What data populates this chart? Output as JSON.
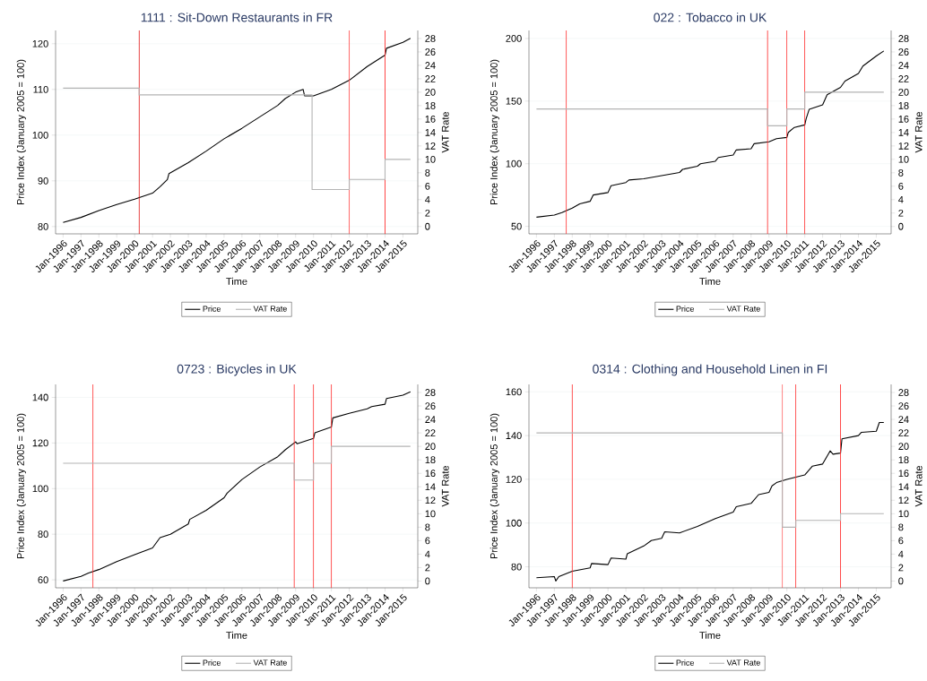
{
  "chart_data": [
    {
      "type": "line",
      "title": "1111 : Sit-Down Restaurants in FR",
      "xlabel": "Time",
      "ylabel": "Price Index (January 2005 = 100)",
      "y2label": "VAT Rate",
      "xlim": [
        "1995-08",
        "2015-11"
      ],
      "ylim": [
        78.4,
        122.9
      ],
      "yticks": [
        80,
        90,
        100,
        110,
        120
      ],
      "y2lim": [
        -1.1,
        29.2
      ],
      "y2ticks": [
        0,
        2,
        4,
        6,
        8,
        10,
        12,
        14,
        16,
        18,
        20,
        22,
        24,
        26,
        28
      ],
      "grid": "y",
      "legend": "bottom",
      "xticks": [
        {
          "value": "1996-01",
          "label": "Jan-1996"
        },
        {
          "value": "1997-01",
          "label": "Jan-1997"
        },
        {
          "value": "1998-01",
          "label": "Jan-1998"
        },
        {
          "value": "1999-01",
          "label": "Jan-1999"
        },
        {
          "value": "2000-01",
          "label": "Jan-2000"
        },
        {
          "value": "2001-01",
          "label": "Jan-2001"
        },
        {
          "value": "2002-01",
          "label": "Jan-2002"
        },
        {
          "value": "2003-01",
          "label": "Jan-2003"
        },
        {
          "value": "2004-01",
          "label": "Jan-2004"
        },
        {
          "value": "2005-01",
          "label": "Jan-2005"
        },
        {
          "value": "2006-01",
          "label": "Jan-2006"
        },
        {
          "value": "2007-01",
          "label": "Jan-2007"
        },
        {
          "value": "2008-01",
          "label": "Jan-2008"
        },
        {
          "value": "2009-01",
          "label": "Jan-2009"
        },
        {
          "value": "2010-01",
          "label": "Jan-2010"
        },
        {
          "value": "2011-01",
          "label": "Jan-2011"
        },
        {
          "value": "2012-01",
          "label": "Jan-2012"
        },
        {
          "value": "2013-01",
          "label": "Jan-2013"
        },
        {
          "value": "2014-01",
          "label": "Jan-2014"
        },
        {
          "value": "2015-01",
          "label": "Jan-2015"
        }
      ],
      "series": [
        {
          "name": "Price",
          "color": "#000000",
          "x": [
            "1996-01",
            "1997-01",
            "1998-01",
            "1999-01",
            "2000-01",
            "2001-01",
            "2001-06",
            "2001-11",
            "2001-12",
            "2003-01",
            "2004-01",
            "2005-01",
            "2006-01",
            "2007-01",
            "2008-01",
            "2008-06",
            "2009-01",
            "2009-06",
            "2009-07",
            "2010-01",
            "2011-01",
            "2012-01",
            "2013-01",
            "2014-01",
            "2014-02",
            "2015-01",
            "2015-06"
          ],
          "values": [
            80.9,
            82.0,
            83.5,
            84.8,
            86.0,
            87.3,
            88.7,
            90.3,
            91.6,
            94.0,
            96.5,
            99.2,
            101.5,
            104.0,
            106.5,
            108.0,
            109.4,
            110.0,
            108.6,
            108.6,
            110.0,
            112.0,
            115.0,
            117.5,
            119.0,
            120.3,
            121.2
          ]
        },
        {
          "name": "VAT Rate",
          "type": "step",
          "axis": "y2",
          "color": "#b4b4b4",
          "x": [
            "1996-01",
            "2000-04",
            "2009-12",
            "2012-01",
            "2014-01",
            "2015-06"
          ],
          "values": [
            20.6,
            19.6,
            5.5,
            7,
            10,
            10
          ]
        }
      ],
      "ref_lines": [
        {
          "axis": "x",
          "value": "2000-04",
          "color": "#e00000"
        },
        {
          "axis": "x",
          "value": "2012-01",
          "color": "#ff5050"
        },
        {
          "axis": "x",
          "value": "2014-01",
          "color": "#ff3030"
        }
      ]
    },
    {
      "type": "line",
      "title": "022 : Tobacco in UK",
      "xlabel": "Time",
      "ylabel": "Price Index (January 2005 = 100)",
      "y2label": "VAT Rate",
      "xlim": [
        "1995-08",
        "2015-11"
      ],
      "ylim": [
        44.0,
        206.4
      ],
      "yticks": [
        50,
        100,
        150,
        200
      ],
      "y2lim": [
        -1.1,
        29.2
      ],
      "y2ticks": [
        0,
        2,
        4,
        6,
        8,
        10,
        12,
        14,
        16,
        18,
        20,
        22,
        24,
        26,
        28
      ],
      "grid": "y",
      "legend": "bottom",
      "xticks": [
        {
          "value": "1996-01",
          "label": "Jan-1996"
        },
        {
          "value": "1997-01",
          "label": "Jan-1997"
        },
        {
          "value": "1998-01",
          "label": "Jan-1998"
        },
        {
          "value": "1999-01",
          "label": "Jan-1999"
        },
        {
          "value": "2000-01",
          "label": "Jan-2000"
        },
        {
          "value": "2001-01",
          "label": "Jan-2001"
        },
        {
          "value": "2002-01",
          "label": "Jan-2002"
        },
        {
          "value": "2003-01",
          "label": "Jan-2003"
        },
        {
          "value": "2004-01",
          "label": "Jan-2004"
        },
        {
          "value": "2005-01",
          "label": "Jan-2005"
        },
        {
          "value": "2006-01",
          "label": "Jan-2006"
        },
        {
          "value": "2007-01",
          "label": "Jan-2007"
        },
        {
          "value": "2008-01",
          "label": "Jan-2008"
        },
        {
          "value": "2009-01",
          "label": "Jan-2009"
        },
        {
          "value": "2010-01",
          "label": "Jan-2010"
        },
        {
          "value": "2011-01",
          "label": "Jan-2011"
        },
        {
          "value": "2012-01",
          "label": "Jan-2012"
        },
        {
          "value": "2013-01",
          "label": "Jan-2013"
        },
        {
          "value": "2014-01",
          "label": "Jan-2014"
        },
        {
          "value": "2015-01",
          "label": "Jan-2015"
        }
      ],
      "series": [
        {
          "name": "Price",
          "color": "#000000",
          "x": [
            "1996-01",
            "1997-01",
            "1997-06",
            "1998-01",
            "1998-06",
            "1999-01",
            "1999-03",
            "2000-01",
            "2000-03",
            "2001-01",
            "2001-03",
            "2002-01",
            "2003-01",
            "2004-01",
            "2004-03",
            "2005-01",
            "2005-03",
            "2006-01",
            "2006-03",
            "2007-01",
            "2007-03",
            "2008-01",
            "2008-03",
            "2009-01",
            "2009-06",
            "2010-01",
            "2010-02",
            "2010-06",
            "2011-01",
            "2011-02",
            "2011-04",
            "2012-01",
            "2012-04",
            "2013-01",
            "2013-04",
            "2014-01",
            "2014-04",
            "2015-01",
            "2015-06"
          ],
          "values": [
            57.3,
            59,
            61,
            64.5,
            68,
            70,
            75,
            77,
            82.5,
            85,
            87,
            88,
            90.5,
            93,
            95.5,
            98,
            100,
            102,
            105,
            107,
            111,
            112,
            116,
            117.5,
            120,
            121,
            125,
            129,
            131,
            136,
            143.5,
            147,
            155,
            161,
            166,
            172,
            178,
            186,
            190
          ]
        },
        {
          "name": "VAT Rate",
          "type": "step",
          "axis": "y2",
          "color": "#b4b4b4",
          "x": [
            "1996-01",
            "2008-12",
            "2010-01",
            "2011-01",
            "2015-06"
          ],
          "values": [
            17.5,
            15,
            17.5,
            20,
            20
          ]
        }
      ],
      "ref_lines": [
        {
          "axis": "x",
          "value": "1997-09",
          "color": "#ff3030"
        },
        {
          "axis": "x",
          "value": "2008-12",
          "color": "#ff3030"
        },
        {
          "axis": "x",
          "value": "2010-01",
          "color": "#ff3030"
        },
        {
          "axis": "x",
          "value": "2011-01",
          "color": "#ff3030"
        }
      ]
    },
    {
      "type": "line",
      "title": "0723 : Bicycles in UK",
      "xlabel": "Time",
      "ylabel": "Price Index (January 2005 = 100)",
      "y2label": "VAT Rate",
      "xlim": [
        "1995-08",
        "2015-11"
      ],
      "ylim": [
        56.5,
        145.7
      ],
      "yticks": [
        60,
        80,
        100,
        120,
        140
      ],
      "y2lim": [
        -1.0,
        29.2
      ],
      "y2ticks": [
        0,
        2,
        4,
        6,
        8,
        10,
        12,
        14,
        16,
        18,
        20,
        22,
        24,
        26,
        28
      ],
      "grid": "y",
      "legend": "bottom",
      "xticks": [
        {
          "value": "1996-01",
          "label": "Jan-1996"
        },
        {
          "value": "1997-01",
          "label": "Jan-1997"
        },
        {
          "value": "1998-01",
          "label": "Jan-1998"
        },
        {
          "value": "1999-01",
          "label": "Jan-1999"
        },
        {
          "value": "2000-01",
          "label": "Jan-2000"
        },
        {
          "value": "2001-01",
          "label": "Jan-2001"
        },
        {
          "value": "2002-01",
          "label": "Jan-2002"
        },
        {
          "value": "2003-01",
          "label": "Jan-2003"
        },
        {
          "value": "2004-01",
          "label": "Jan-2004"
        },
        {
          "value": "2005-01",
          "label": "Jan-2005"
        },
        {
          "value": "2006-01",
          "label": "Jan-2006"
        },
        {
          "value": "2007-01",
          "label": "Jan-2007"
        },
        {
          "value": "2008-01",
          "label": "Jan-2008"
        },
        {
          "value": "2009-01",
          "label": "Jan-2009"
        },
        {
          "value": "2010-01",
          "label": "Jan-2010"
        },
        {
          "value": "2011-01",
          "label": "Jan-2011"
        },
        {
          "value": "2012-01",
          "label": "Jan-2012"
        },
        {
          "value": "2013-01",
          "label": "Jan-2013"
        },
        {
          "value": "2014-01",
          "label": "Jan-2014"
        },
        {
          "value": "2015-01",
          "label": "Jan-2015"
        }
      ],
      "series": [
        {
          "name": "Price",
          "color": "#000000",
          "x": [
            "1996-01",
            "1997-01",
            "1997-06",
            "1998-01",
            "1999-01",
            "2000-01",
            "2001-01",
            "2001-06",
            "2002-01",
            "2003-01",
            "2003-02",
            "2004-01",
            "2005-01",
            "2005-03",
            "2006-01",
            "2007-01",
            "2008-01",
            "2008-06",
            "2009-01",
            "2009-02",
            "2010-01",
            "2010-02",
            "2011-01",
            "2011-02",
            "2012-01",
            "2013-01",
            "2013-04",
            "2014-01",
            "2014-02",
            "2015-01",
            "2015-06"
          ],
          "values": [
            59.5,
            61.5,
            63,
            64.5,
            68,
            71,
            74,
            78.5,
            80,
            84.5,
            86.5,
            90.5,
            96,
            98,
            104,
            109.5,
            114,
            117,
            120.5,
            119.7,
            122,
            124.5,
            127,
            131,
            133,
            135,
            136,
            137,
            139.5,
            141,
            142.5
          ]
        },
        {
          "name": "VAT Rate",
          "type": "step",
          "axis": "y2",
          "color": "#b4b4b4",
          "x": [
            "1996-01",
            "2008-12",
            "2010-01",
            "2011-01",
            "2015-06"
          ],
          "values": [
            17.5,
            15,
            17.5,
            20,
            20
          ]
        }
      ],
      "ref_lines": [
        {
          "axis": "x",
          "value": "1997-09",
          "color": "#ff3030"
        },
        {
          "axis": "x",
          "value": "2008-12",
          "color": "#ff3030"
        },
        {
          "axis": "x",
          "value": "2010-01",
          "color": "#ff3030"
        },
        {
          "axis": "x",
          "value": "2011-01",
          "color": "#ff3030"
        }
      ]
    },
    {
      "type": "line",
      "title": "0314 : Clothing and Household Linen in FI",
      "xlabel": "Time",
      "ylabel": "Price Index (January 2005 = 100)",
      "y2label": "VAT Rate",
      "xlim": [
        "1995-08",
        "2015-11"
      ],
      "ylim": [
        70.4,
        163.4
      ],
      "yticks": [
        80,
        100,
        120,
        140,
        160
      ],
      "y2lim": [
        -1.0,
        29.2
      ],
      "y2ticks": [
        0,
        2,
        4,
        6,
        8,
        10,
        12,
        14,
        16,
        18,
        20,
        22,
        24,
        26,
        28
      ],
      "grid": "y",
      "legend": "bottom",
      "xticks": [
        {
          "value": "1996-01",
          "label": "Jan-1996"
        },
        {
          "value": "1997-01",
          "label": "Jan-1997"
        },
        {
          "value": "1998-01",
          "label": "Jan-1998"
        },
        {
          "value": "1999-01",
          "label": "Jan-1999"
        },
        {
          "value": "2000-01",
          "label": "Jan-2000"
        },
        {
          "value": "2001-01",
          "label": "Jan-2001"
        },
        {
          "value": "2002-01",
          "label": "Jan-2002"
        },
        {
          "value": "2003-01",
          "label": "Jan-2003"
        },
        {
          "value": "2004-01",
          "label": "Jan-2004"
        },
        {
          "value": "2005-01",
          "label": "Jan-2005"
        },
        {
          "value": "2006-01",
          "label": "Jan-2006"
        },
        {
          "value": "2007-01",
          "label": "Jan-2007"
        },
        {
          "value": "2008-01",
          "label": "Jan-2008"
        },
        {
          "value": "2009-01",
          "label": "Jan-2009"
        },
        {
          "value": "2010-01",
          "label": "Jan-2010"
        },
        {
          "value": "2011-01",
          "label": "Jan-2011"
        },
        {
          "value": "2012-01",
          "label": "Jan-2012"
        },
        {
          "value": "2013-01",
          "label": "Jan-2013"
        },
        {
          "value": "2014-01",
          "label": "Jan-2014"
        },
        {
          "value": "2015-01",
          "label": "Jan-2015"
        }
      ],
      "series": [
        {
          "name": "Price",
          "color": "#000000",
          "x": [
            "1996-01",
            "1997-01",
            "1997-02",
            "1997-04",
            "1998-01",
            "1999-01",
            "1999-02",
            "2000-01",
            "2000-03",
            "2001-01",
            "2001-02",
            "2002-01",
            "2002-06",
            "2003-01",
            "2003-03",
            "2004-01",
            "2005-01",
            "2006-01",
            "2007-01",
            "2007-03",
            "2008-01",
            "2008-06",
            "2009-01",
            "2009-03",
            "2009-06",
            "2010-01",
            "2011-01",
            "2011-06",
            "2012-01",
            "2012-06",
            "2012-08",
            "2013-01",
            "2013-02",
            "2014-01",
            "2014-03",
            "2015-01",
            "2015-03",
            "2015-06"
          ],
          "values": [
            75,
            75.5,
            73.5,
            75.5,
            78,
            79.5,
            81.5,
            81,
            84,
            83.5,
            86,
            89.5,
            92,
            93,
            96,
            95.5,
            98.5,
            102,
            105,
            107.5,
            109,
            113,
            114,
            117,
            118.5,
            120,
            122,
            126,
            127,
            133,
            131.5,
            132,
            138.5,
            140,
            141.5,
            142,
            146,
            146
          ]
        },
        {
          "name": "VAT Rate",
          "type": "step",
          "axis": "y2",
          "color": "#b4b4b4",
          "x": [
            "1996-01",
            "2009-10",
            "2010-07",
            "2013-01",
            "2015-06"
          ],
          "values": [
            22,
            8,
            9,
            10,
            10
          ]
        }
      ],
      "ref_lines": [
        {
          "axis": "x",
          "value": "1998-01",
          "color": "#ff3030"
        },
        {
          "axis": "x",
          "value": "2009-10",
          "color": "#ff3030"
        },
        {
          "axis": "x",
          "value": "2010-07",
          "color": "#ff3030"
        },
        {
          "axis": "x",
          "value": "2013-01",
          "color": "#ff3030"
        }
      ]
    }
  ]
}
